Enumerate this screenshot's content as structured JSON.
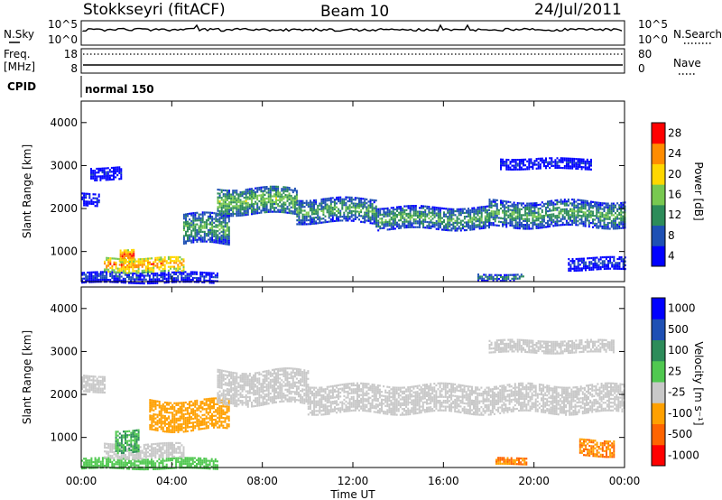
{
  "header": {
    "station": "Stokkseyri (fitACF)",
    "beam": "Beam 10",
    "date": "24/Jul/2011"
  },
  "noise_panel": {
    "left_label": "N.Sky",
    "right_label": "N.Search",
    "left_ticks": [
      "10^5",
      "10^0"
    ],
    "right_ticks": [
      "10^5",
      "10^0"
    ]
  },
  "freq_panel": {
    "left_label_1": "Freq.",
    "left_label_2": "[MHz]",
    "right_label": "Nave",
    "left_ticks": [
      "18",
      "8"
    ],
    "right_ticks": [
      "80",
      "0"
    ]
  },
  "cpid": {
    "label": "CPID",
    "value": "normal 150"
  },
  "chart_data": [
    {
      "type": "heatmap",
      "panel": "power",
      "ylabel": "Slant Range [km]",
      "yticks": [
        "1000",
        "2000",
        "3000",
        "4000"
      ],
      "ylim": [
        300,
        4500
      ],
      "xlim": [
        "00:00",
        "24:00"
      ],
      "colorbar_label": "Power [dB]",
      "colorbar_ticks": [
        "28",
        "24",
        "20",
        "16",
        "12",
        "8",
        "4"
      ],
      "colorbar_colors": [
        "#0000ff",
        "#1e50b4",
        "#2d8c5a",
        "#78c850",
        "#ffd700",
        "#ff8c00",
        "#ff0000"
      ],
      "echo_bands": [
        {
          "t_start": 0.0,
          "t_end": 6.0,
          "range_low": 300,
          "range_high": 550,
          "power_db": 8
        },
        {
          "t_start": 1.0,
          "t_end": 4.5,
          "range_low": 550,
          "range_high": 900,
          "power_db": 24
        },
        {
          "t_start": 1.7,
          "t_end": 2.3,
          "range_low": 800,
          "range_high": 1100,
          "power_db": 26
        },
        {
          "t_start": 0.0,
          "t_end": 0.8,
          "range_low": 2100,
          "range_high": 2400,
          "power_db": 8
        },
        {
          "t_start": 0.4,
          "t_end": 1.8,
          "range_low": 2700,
          "range_high": 3000,
          "power_db": 6
        },
        {
          "t_start": 4.5,
          "t_end": 6.5,
          "range_low": 1200,
          "range_high": 1900,
          "power_db": 14
        },
        {
          "t_start": 6.0,
          "t_end": 9.5,
          "range_low": 1900,
          "range_high": 2500,
          "power_db": 16
        },
        {
          "t_start": 9.5,
          "t_end": 13.0,
          "range_low": 1700,
          "range_high": 2250,
          "power_db": 14
        },
        {
          "t_start": 13.0,
          "t_end": 18.0,
          "range_low": 1550,
          "range_high": 2050,
          "power_db": 14
        },
        {
          "t_start": 18.0,
          "t_end": 24.0,
          "range_low": 1600,
          "range_high": 2200,
          "power_db": 14
        },
        {
          "t_start": 18.5,
          "t_end": 22.5,
          "range_low": 2950,
          "range_high": 3200,
          "power_db": 6
        },
        {
          "t_start": 17.5,
          "t_end": 19.5,
          "range_low": 350,
          "range_high": 500,
          "power_db": 12
        },
        {
          "t_start": 21.5,
          "t_end": 24.0,
          "range_low": 600,
          "range_high": 900,
          "power_db": 8
        }
      ]
    },
    {
      "type": "heatmap",
      "panel": "velocity",
      "ylabel": "Slant Range [km]",
      "yticks": [
        "1000",
        "2000",
        "3000",
        "4000"
      ],
      "ylim": [
        300,
        4500
      ],
      "xlabel": "Time UT",
      "xticks": [
        "00:00",
        "04:00",
        "08:00",
        "12:00",
        "16:00",
        "20:00",
        "00:00"
      ],
      "xlim": [
        "00:00",
        "24:00"
      ],
      "colorbar_label": "Velocity [m s⁻¹]",
      "colorbar_ticks": [
        "1000",
        "500",
        "100",
        "25",
        "-25",
        "-100",
        "-500",
        "-1000"
      ],
      "colorbar_colors": [
        "#ff0000",
        "#ff6400",
        "#ffa000",
        "#c8c8c8",
        "#50c850",
        "#2d8c5a",
        "#1e50b4",
        "#0000ff"
      ],
      "echo_bands": [
        {
          "t_start": 0.0,
          "t_end": 6.0,
          "range_low": 300,
          "range_high": 550,
          "velocity": 100
        },
        {
          "t_start": 1.0,
          "t_end": 4.5,
          "range_low": 550,
          "range_high": 900,
          "velocity": 0
        },
        {
          "t_start": 1.5,
          "t_end": 2.5,
          "range_low": 700,
          "range_high": 1200,
          "velocity": 300
        },
        {
          "t_start": 0.0,
          "t_end": 1.0,
          "range_low": 2100,
          "range_high": 2500,
          "velocity": 0
        },
        {
          "t_start": 3.0,
          "t_end": 6.5,
          "range_low": 1200,
          "range_high": 1900,
          "velocity": -200
        },
        {
          "t_start": 6.0,
          "t_end": 10.0,
          "range_low": 1800,
          "range_high": 2600,
          "velocity": 0
        },
        {
          "t_start": 10.0,
          "t_end": 24.0,
          "range_low": 1600,
          "range_high": 2250,
          "velocity": 0
        },
        {
          "t_start": 18.0,
          "t_end": 23.5,
          "range_low": 3000,
          "range_high": 3300,
          "velocity": 0
        },
        {
          "t_start": 18.3,
          "t_end": 19.7,
          "range_low": 400,
          "range_high": 550,
          "velocity": -300
        },
        {
          "t_start": 22.0,
          "t_end": 23.5,
          "range_low": 600,
          "range_high": 1000,
          "velocity": -300
        }
      ]
    }
  ]
}
